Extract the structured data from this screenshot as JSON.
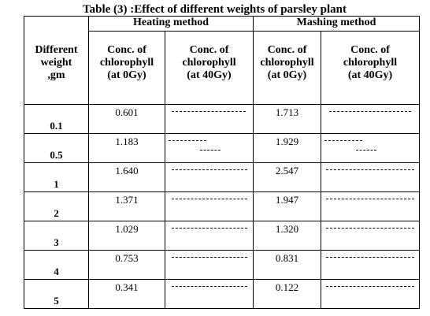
{
  "table": {
    "caption": "Table (3) :Effect of different weights of parsley plant",
    "weight_header": [
      "Different",
      "weight",
      ",gm"
    ],
    "group_heating": "Heating method",
    "group_mashing": "Mashing method",
    "sub_0gy": [
      "Conc. of",
      "chlorophyll",
      "(at 0Gy)"
    ],
    "sub_40gy": [
      "Conc. of",
      "chlorophyll",
      "(at 40Gy)"
    ],
    "rows": [
      {
        "weight": "0.1",
        "heat_0": "0.601",
        "mash_0": "1.713"
      },
      {
        "weight": "0.5",
        "heat_0": "1.183",
        "mash_0": "1.929"
      },
      {
        "weight": "1",
        "heat_0": "1.640",
        "mash_0": "2.547"
      },
      {
        "weight": "2",
        "heat_0": "1.371",
        "mash_0": "1.947"
      },
      {
        "weight": "3",
        "heat_0": "1.029",
        "mash_0": "1.320"
      },
      {
        "weight": "4",
        "heat_0": "0.753",
        "mash_0": "0.831"
      },
      {
        "weight": "5",
        "heat_0": "0.341",
        "mash_0": "0.122"
      }
    ]
  }
}
